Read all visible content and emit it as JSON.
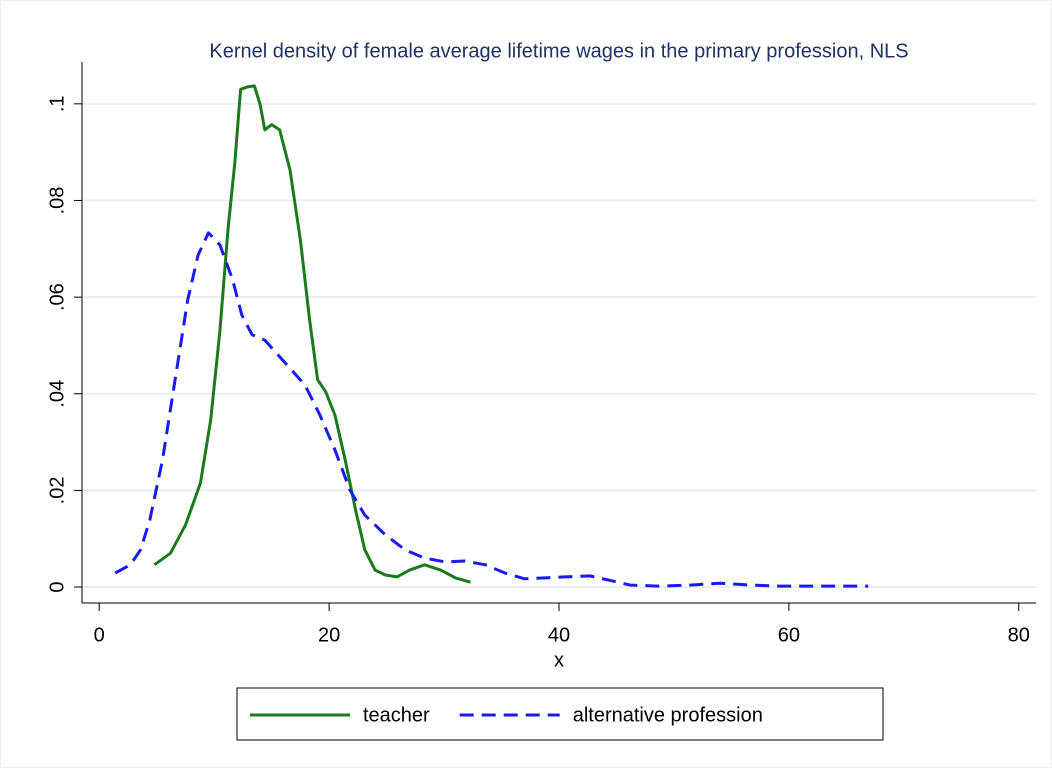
{
  "chart_data": {
    "type": "line",
    "title": "Kernel density of female average lifetime wages in the primary profession, NLS",
    "x_label": "x",
    "xlim": [
      -1.5,
      81.5
    ],
    "xticks": [
      0,
      20,
      40,
      60,
      80
    ],
    "ylim": [
      -0.0033,
      0.107
    ],
    "yticks": [
      0,
      {
        "value": 0.02,
        "label": ".02"
      },
      {
        "value": 0.04,
        "label": ".04"
      },
      {
        "value": 0.06,
        "label": ".06"
      },
      {
        "value": 0.08,
        "label": ".08"
      },
      {
        "value": 0.1,
        "label": ".1"
      }
    ],
    "grid": true,
    "legend": "bottom",
    "series": [
      {
        "name": "teacher",
        "color": "#1b7a1b",
        "dash": "solid",
        "x": [
          4.8,
          6.2,
          7.5,
          8.8,
          9.7,
          10.5,
          11.2,
          11.8,
          12.3,
          12.9,
          13.5,
          14.0,
          14.4,
          15.0,
          15.7,
          16.6,
          17.5,
          18.3,
          19.0,
          19.7,
          20.5,
          21.4,
          22.3,
          23.1,
          24.0,
          24.9,
          25.9,
          27.0,
          28.3,
          29.7,
          31.0,
          32.3
        ],
        "values": [
          0.0046,
          0.007,
          0.0128,
          0.0215,
          0.0346,
          0.053,
          0.074,
          0.088,
          0.103,
          0.1035,
          0.1037,
          0.0998,
          0.0946,
          0.0957,
          0.0946,
          0.0863,
          0.0718,
          0.0553,
          0.0429,
          0.0404,
          0.0356,
          0.0263,
          0.0159,
          0.0077,
          0.0035,
          0.0025,
          0.0021,
          0.0035,
          0.0046,
          0.0035,
          0.0019,
          0.001
        ]
      },
      {
        "name": "alternative profession",
        "color": "#1a1aee",
        "dash": "dashed",
        "x": [
          1.4,
          2.7,
          3.6,
          4.4,
          5.5,
          6.6,
          7.7,
          8.6,
          9.5,
          10.5,
          11.6,
          12.4,
          13.3,
          14.4,
          15.3,
          16.6,
          17.9,
          19.2,
          20.5,
          21.8,
          23.1,
          24.9,
          26.6,
          28.3,
          30.1,
          31.8,
          33.6,
          35.3,
          37.0,
          38.8,
          40.5,
          42.7,
          44.4,
          46.2,
          48.8,
          51.4,
          54.0,
          56.6,
          59.2,
          62.7,
          66.9
        ],
        "values": [
          0.0029,
          0.0046,
          0.0077,
          0.0139,
          0.0263,
          0.0429,
          0.0594,
          0.0687,
          0.0733,
          0.0708,
          0.0636,
          0.0563,
          0.0522,
          0.0511,
          0.0487,
          0.0453,
          0.0418,
          0.0356,
          0.0284,
          0.0201,
          0.0149,
          0.0108,
          0.0077,
          0.006,
          0.0052,
          0.0054,
          0.0046,
          0.0029,
          0.0017,
          0.0019,
          0.0021,
          0.0023,
          0.0014,
          0.0004,
          0.0002,
          0.0004,
          0.0008,
          0.0004,
          0.0002,
          0.0002,
          0.0002
        ]
      }
    ]
  }
}
